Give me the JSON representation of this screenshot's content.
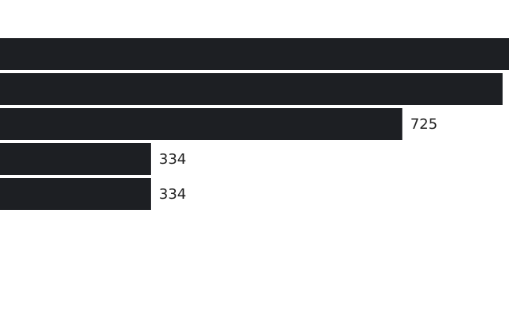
{
  "chart_data": {
    "type": "barh",
    "values": [
      891,
      881,
      725,
      334,
      334
    ],
    "color": "#1d1f23",
    "xlim": [
      99,
      891
    ]
  }
}
